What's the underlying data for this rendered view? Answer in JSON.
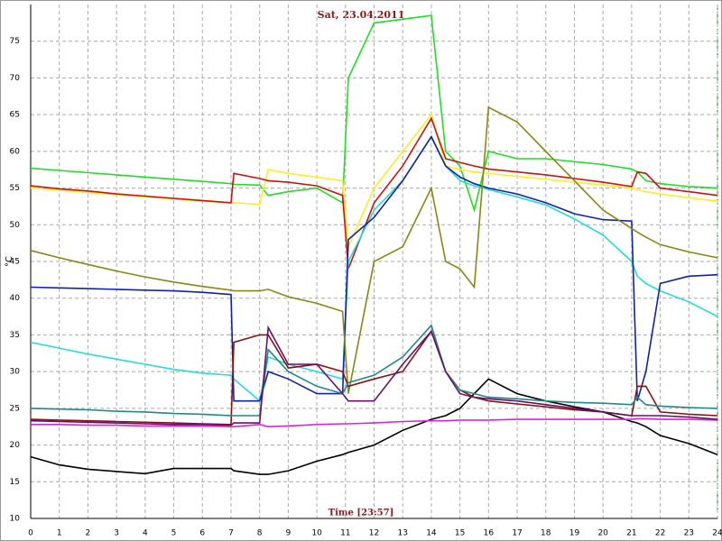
{
  "chart_data": {
    "type": "line",
    "title": "Sat, 23.04.2011",
    "y_label": "°C",
    "x_label": "Time [23:57]",
    "x": [
      0,
      1,
      2,
      3,
      4,
      5,
      6,
      7,
      7.1,
      8,
      8.3,
      9,
      10,
      10.9,
      11.1,
      12,
      13,
      14,
      14.5,
      15,
      15.5,
      16,
      17,
      18,
      19,
      20,
      21,
      21.2,
      21.5,
      22,
      23,
      24
    ],
    "xlim": [
      0,
      24
    ],
    "xticks": [
      0,
      1,
      2,
      3,
      4,
      5,
      6,
      7,
      8,
      9,
      10,
      11,
      12,
      13,
      14,
      15,
      16,
      17,
      18,
      19,
      20,
      21,
      22,
      23,
      24
    ],
    "ylim": [
      10,
      80
    ],
    "yticks": [
      10,
      15,
      20,
      25,
      30,
      35,
      40,
      45,
      50,
      55,
      60,
      65,
      70,
      75
    ],
    "grid": true,
    "series": [
      {
        "color": "#22dd22",
        "values": [
          57.7,
          57.4,
          57.1,
          56.8,
          56.5,
          56.2,
          55.9,
          55.6,
          55.5,
          55.4,
          54,
          54.5,
          55,
          53,
          70,
          77.5,
          78,
          78.5,
          60,
          58,
          52,
          60,
          59,
          59,
          58.6,
          58.2,
          57.6,
          57.2,
          56,
          55.6,
          55.2,
          55
        ]
      },
      {
        "color": "#ffee22",
        "values": [
          55,
          54.7,
          54.4,
          54.1,
          53.8,
          53.5,
          53.2,
          53,
          53,
          52.8,
          57.5,
          57,
          56.5,
          56,
          47,
          55,
          60,
          65,
          58,
          57.5,
          57.2,
          57,
          56.6,
          56.2,
          55.8,
          55.4,
          55,
          54.8,
          54.5,
          54.2,
          53.7,
          53.2
        ]
      },
      {
        "color": "#cc1111",
        "values": [
          55.3,
          54.9,
          54.6,
          54.2,
          53.9,
          53.6,
          53.3,
          53,
          57,
          56.3,
          56,
          55.8,
          55.3,
          54,
          44,
          53,
          58,
          64.5,
          59,
          58.5,
          58,
          57.6,
          57.2,
          56.8,
          56.3,
          55.8,
          55.2,
          57.2,
          57,
          55,
          54.5,
          54
        ]
      },
      {
        "color": "#22dddd",
        "values": [
          34,
          33.2,
          32.4,
          31.7,
          31,
          30.3,
          29.8,
          29.5,
          29,
          26,
          32,
          31,
          30,
          29,
          45,
          52,
          56,
          62,
          58,
          56,
          55.3,
          54.8,
          53.8,
          52.7,
          50.8,
          48.6,
          45,
          43,
          42,
          41,
          39.5,
          37.5
        ]
      },
      {
        "color": "#1122aa",
        "values": [
          41.5,
          41.4,
          41.3,
          41.2,
          41.1,
          41,
          40.8,
          40.5,
          26,
          26,
          30,
          29,
          27,
          27,
          48,
          51,
          56,
          62,
          58,
          56.5,
          55.6,
          55,
          54.2,
          53,
          51.5,
          50.7,
          50.5,
          26,
          30,
          42,
          43,
          43.2
        ]
      },
      {
        "color": "#888811",
        "values": [
          46.5,
          45.5,
          44.6,
          43.7,
          42.9,
          42.2,
          41.6,
          41.1,
          41,
          41,
          41.2,
          40.2,
          39.3,
          38.2,
          27,
          45,
          47,
          55,
          45,
          44,
          41.5,
          66,
          64,
          60,
          56,
          52,
          49.5,
          49,
          48.3,
          47.3,
          46.3,
          45.5
        ]
      },
      {
        "color": "#000000",
        "values": [
          18.4,
          17.3,
          16.7,
          16.4,
          16.1,
          16.8,
          16.8,
          16.8,
          16.5,
          16,
          16,
          16.5,
          17.8,
          18.7,
          19,
          20,
          22,
          23.5,
          24,
          25,
          27,
          29,
          27,
          26,
          25.2,
          24.5,
          23.2,
          23,
          22.5,
          21.3,
          20.2,
          18.7
        ]
      },
      {
        "color": "#dd22dd",
        "values": [
          22.8,
          22.8,
          22.7,
          22.7,
          22.6,
          22.6,
          22.6,
          22.5,
          22.5,
          22.8,
          22.5,
          22.6,
          22.8,
          22.9,
          22.9,
          23,
          23.2,
          23.3,
          23.3,
          23.4,
          23.4,
          23.4,
          23.5,
          23.5,
          23.5,
          23.5,
          23.5,
          23.6,
          23.6,
          23.5,
          23.5,
          23.4
        ]
      },
      {
        "color": "#881111",
        "values": [
          23.5,
          23.4,
          23.3,
          23.2,
          23.1,
          23,
          22.9,
          22.8,
          34,
          35,
          35,
          30.5,
          31,
          30,
          28,
          29,
          30,
          35.5,
          30,
          27.5,
          26.5,
          26,
          25.6,
          25.2,
          24.8,
          24.5,
          24,
          28,
          28,
          24.5,
          24.2,
          24
        ]
      },
      {
        "color": "#228888",
        "values": [
          25,
          24.9,
          24.8,
          24.6,
          24.5,
          24.3,
          24.2,
          24,
          24,
          24,
          33,
          30,
          28,
          27,
          28.5,
          29.5,
          32,
          36.3,
          30,
          27.5,
          27,
          26.5,
          26.3,
          26,
          25.8,
          25.7,
          25.5,
          26.5,
          25.5,
          25.3,
          25.1,
          25
        ]
      },
      {
        "color": "#661166",
        "values": [
          23.3,
          23.2,
          23.1,
          23,
          22.9,
          22.8,
          22.8,
          22.7,
          23,
          23,
          36,
          31,
          31,
          27,
          26,
          26,
          31,
          35.5,
          30,
          27,
          26.5,
          26.3,
          26,
          25.5,
          25,
          24.5,
          24,
          24,
          24,
          24,
          23.8,
          23.5
        ]
      }
    ]
  }
}
